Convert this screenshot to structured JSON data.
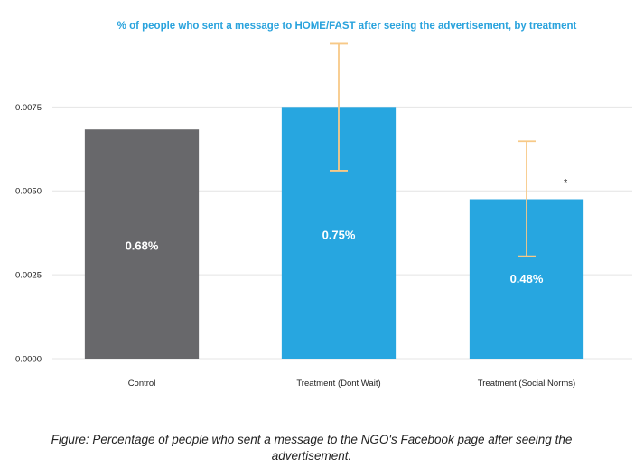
{
  "chart_data": {
    "type": "bar",
    "title": "% of people who sent a message to HOME/FAST after seeing the advertisement, by treatment",
    "xlabel": "",
    "ylabel": "",
    "ylim": [
      0,
      0.0095
    ],
    "yticks": [
      "0.0000",
      "0.0025",
      "0.0050",
      "0.0075"
    ],
    "ytick_values": [
      0,
      0.0025,
      0.005,
      0.0075
    ],
    "grid": true,
    "categories": [
      "Control",
      "Treatment (Dont Wait)",
      "Treatment (Social Norms)"
    ],
    "values": [
      0.00683,
      0.0075,
      0.00475
    ],
    "data_labels": [
      "0.68%",
      "0.75%",
      "0.48%"
    ],
    "error_low": [
      null,
      0.0056,
      0.00305
    ],
    "error_high": [
      null,
      0.00938,
      0.00648
    ],
    "significance": [
      "",
      "",
      "*"
    ],
    "colors": {
      "control": "#68686b",
      "treatment": "#27a6e0",
      "error_bar": "#f7c987",
      "title": "#2aa3dd",
      "grid": "#e4e4e4"
    }
  },
  "caption": {
    "text": "Figure: Percentage of people who sent a message to the NGO's Facebook page after seeing the advertisement."
  }
}
